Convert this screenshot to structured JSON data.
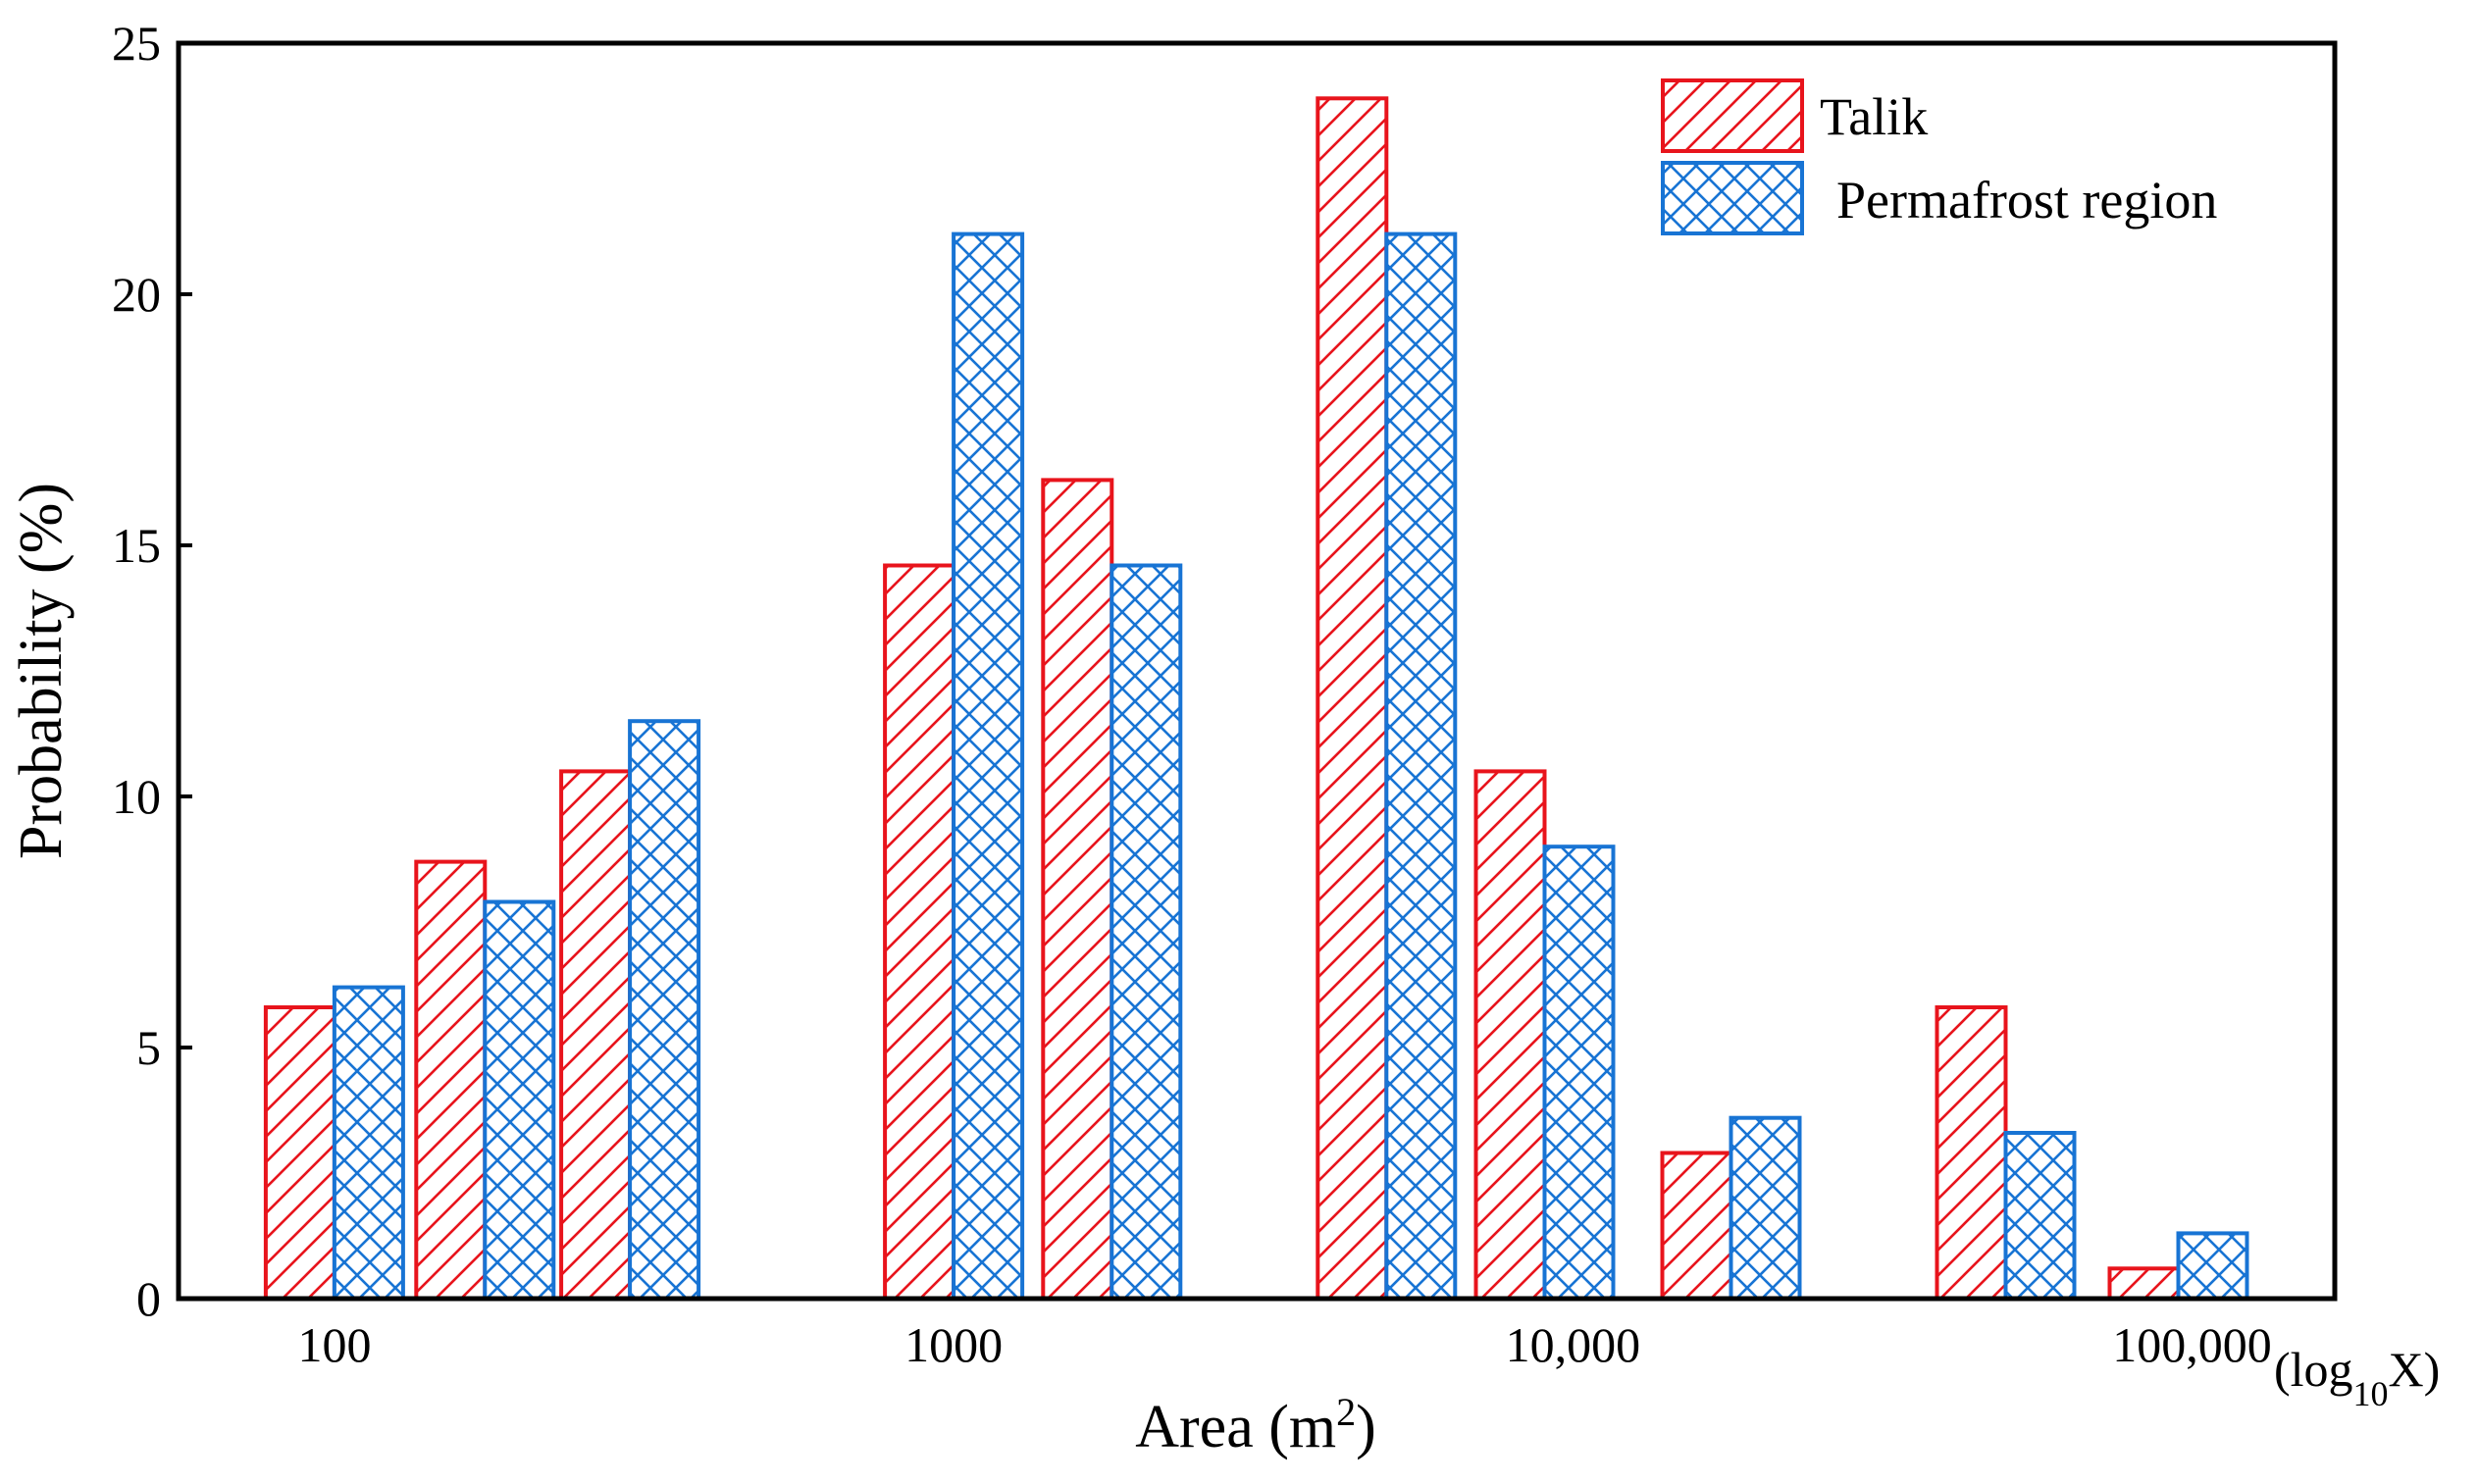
{
  "chart_data": {
    "type": "bar",
    "title": "",
    "xlabel": "Area (m",
    "xlabel_sup": "2",
    "xlabel_close": ")",
    "ylabel": "Probability (%)",
    "x_scale_note": {
      "prefix": "(log",
      "sub": "10",
      "suffix": "X)"
    },
    "ylim": [
      0,
      25
    ],
    "yticks": [
      "0",
      "5",
      "10",
      "15",
      "20",
      "25"
    ],
    "x_scale": "log",
    "xlim": [
      56,
      170000
    ],
    "xticks": [
      {
        "label": "100",
        "value": 100
      },
      {
        "label": "1000",
        "value": 1000
      },
      {
        "label": "10,000",
        "value": 10000
      },
      {
        "label": "100,000",
        "value": 100000
      }
    ],
    "bin_centers": [
      100,
      175,
      300,
      1000,
      1800,
      5000,
      9000,
      18000,
      50000,
      95000
    ],
    "legend_position": "top-right",
    "series": [
      {
        "name": "Talik",
        "color": "#e8141c",
        "pattern": "diagonal",
        "values": [
          5.8,
          8.7,
          10.5,
          14.6,
          16.3,
          23.9,
          10.5,
          2.9,
          5.8,
          0.6
        ]
      },
      {
        "name": "Permafrost region",
        "color": "#1874d4",
        "pattern": "crosshatch",
        "values": [
          6.2,
          7.9,
          11.5,
          21.2,
          14.6,
          21.2,
          9.0,
          3.6,
          3.3,
          1.3
        ]
      }
    ]
  }
}
